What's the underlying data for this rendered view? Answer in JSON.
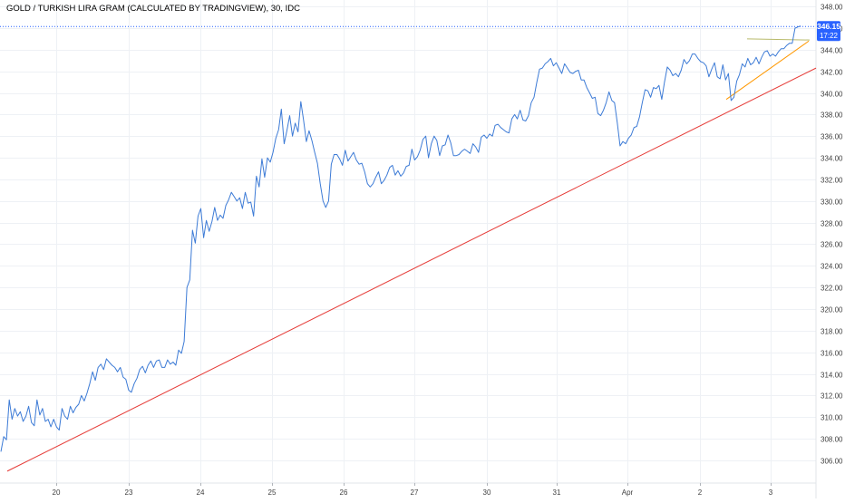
{
  "header": {
    "title": "GOLD / TURKISH LIRA GRAM (CALCULATED BY TRADINGVIEW), 30, IDC"
  },
  "price_tag": {
    "price": "346.15",
    "countdown": "17:22",
    "color": "#2962ff"
  },
  "colors": {
    "price_line": "#3d7bd6",
    "trend_line": "#e53935",
    "triangle_lower": "#ff9800",
    "triangle_upper": "#b8ba6a",
    "grid": "#eef1f5",
    "axis_text": "#404040"
  },
  "chart_data": {
    "type": "line",
    "symbol": "GOLD / TURKISH LIRA GRAM (CALCULATED BY TRADINGVIEW)",
    "interval": "30",
    "source": "IDC",
    "title": "",
    "xlabel": "",
    "ylabel": "",
    "ylim": [
      303.9,
      348.6
    ],
    "y_ticks": [
      306,
      308,
      310,
      312,
      314,
      316,
      318,
      320,
      322,
      324,
      326,
      328,
      330,
      332,
      334,
      336,
      338,
      340,
      342,
      344,
      346,
      348
    ],
    "x_ticks": [
      "20",
      "23",
      "24",
      "25",
      "26",
      "27",
      "30",
      "31",
      "Apr",
      "2",
      "3"
    ],
    "grid": true,
    "series": [
      {
        "values": [
          306.8,
          308.2,
          307.9,
          311.6,
          309.8,
          310.8,
          310.1,
          310.5,
          309.6,
          310.1,
          311.0,
          309.5,
          309.2,
          311.6,
          310.2,
          310.8,
          309.6,
          309.8,
          309.1,
          309.8,
          309.1,
          308.8,
          310.8,
          310.1,
          309.8,
          311.0,
          310.4,
          310.9,
          311.2,
          312.0,
          311.5,
          312.2,
          313.1,
          314.2,
          313.4,
          314.6,
          314.9,
          314.4,
          315.4,
          315.1,
          314.8,
          314.6,
          314.2,
          314.6,
          313.7,
          313.5,
          312.5,
          312.3,
          313.1,
          313.6,
          314.4,
          314.7,
          314.1,
          314.8,
          315.2,
          314.6,
          315.2,
          315.3,
          314.6,
          314.6,
          315.3,
          314.9,
          315.1,
          314.8,
          316.2,
          315.9,
          317.0,
          322.0,
          322.7,
          327.3,
          326.1,
          328.6,
          329.3,
          326.6,
          328.2,
          327.2,
          328.1,
          329.4,
          328.2,
          328.7,
          328.4,
          329.6,
          330.1,
          330.8,
          330.4,
          330.0,
          330.3,
          329.3,
          330.8,
          329.8,
          329.9,
          328.6,
          332.3,
          331.3,
          333.9,
          332.2,
          334.0,
          333.6,
          334.5,
          335.8,
          336.6,
          338.5,
          335.3,
          336.5,
          337.9,
          336.0,
          337.2,
          336.4,
          339.2,
          337.5,
          335.5,
          336.5,
          335.6,
          334.5,
          333.5,
          331.6,
          330.0,
          329.4,
          330.0,
          333.4,
          334.3,
          334.3,
          333.9,
          333.3,
          334.7,
          333.7,
          334.1,
          334.5,
          333.8,
          333.4,
          333.5,
          332.7,
          331.6,
          331.3,
          331.6,
          332.2,
          332.7,
          331.6,
          331.9,
          332.4,
          333.1,
          333.3,
          332.4,
          332.8,
          332.3,
          332.6,
          333.2,
          333.3,
          334.8,
          333.8,
          334.1,
          334.7,
          335.7,
          336.0,
          334.0,
          335.3,
          336.0,
          335.6,
          334.2,
          335.1,
          335.2,
          336.1,
          335.4,
          334.2,
          334.2,
          334.3,
          334.6,
          334.8,
          334.6,
          334.4,
          335.3,
          335.0,
          334.5,
          335.9,
          336.1,
          335.8,
          336.2,
          336.0,
          337.0,
          337.1,
          336.8,
          336.6,
          336.4,
          336.3,
          337.6,
          338.0,
          337.6,
          338.4,
          337.5,
          337.4,
          337.9,
          339.1,
          339.6,
          341.0,
          342.2,
          342.3,
          342.7,
          342.9,
          343.2,
          342.5,
          342.8,
          342.3,
          341.8,
          342.7,
          342.3,
          341.9,
          341.8,
          342.0,
          342.1,
          341.2,
          341.2,
          340.5,
          340.0,
          339.5,
          339.6,
          338.1,
          337.9,
          338.4,
          339.1,
          340.1,
          339.3,
          339.1,
          337.2,
          335.1,
          335.5,
          335.3,
          335.8,
          336.1,
          336.8,
          336.9,
          337.8,
          339.1,
          340.3,
          340.2,
          339.6,
          340.5,
          340.4,
          340.7,
          339.4,
          341.0,
          342.4,
          342.1,
          341.6,
          341.8,
          341.5,
          342.1,
          343.1,
          342.7,
          343.0,
          343.6,
          343.6,
          343.2,
          342.9,
          342.8,
          342.5,
          341.5,
          342.2,
          342.8,
          341.5,
          341.3,
          342.6,
          341.2,
          341.8,
          339.3,
          339.6,
          341.1,
          341.7,
          342.7,
          342.4,
          343.2,
          342.6,
          342.8,
          343.3,
          342.7,
          343.3,
          343.8,
          343.9,
          343.4,
          343.6,
          343.4,
          343.8,
          344.1,
          344.1,
          344.4,
          344.6,
          344.6,
          346.0,
          346.1,
          346.2
        ]
      }
    ],
    "trend_line": {
      "start": {
        "x": "19",
        "y": 305.0
      },
      "end": {
        "x": "3",
        "y": 342.3
      }
    },
    "triangle_pattern": {
      "upper": {
        "from": 345.0,
        "to": 344.9
      },
      "lower": {
        "from": 339.4,
        "to": 344.8
      }
    },
    "last_price": 346.15
  }
}
